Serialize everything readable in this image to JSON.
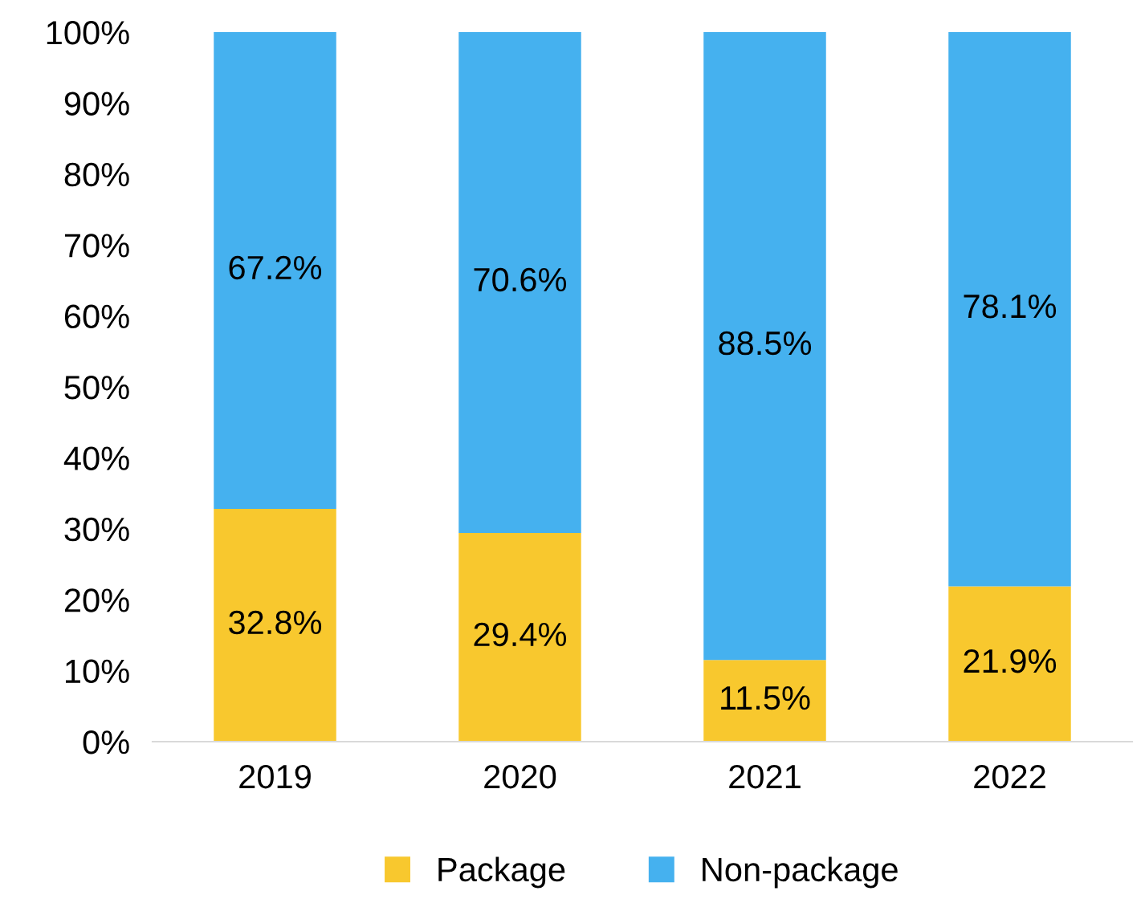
{
  "chart_data": {
    "type": "bar",
    "stacked": true,
    "categories": [
      "2019",
      "2020",
      "2021",
      "2022"
    ],
    "series": [
      {
        "name": "Package",
        "color": "#f8c82e",
        "values": [
          32.8,
          29.4,
          11.5,
          21.9
        ],
        "value_labels": [
          "32.8%",
          "29.4%",
          "11.5%",
          "21.9%"
        ]
      },
      {
        "name": "Non-package",
        "color": "#45b1ef",
        "values": [
          67.2,
          70.6,
          88.5,
          78.1
        ],
        "value_labels": [
          "67.2%",
          "70.6%",
          "88.5%",
          "78.1%"
        ]
      }
    ],
    "ylim": [
      0,
      100
    ],
    "yticks": [
      {
        "value": 0,
        "label": "0%"
      },
      {
        "value": 10,
        "label": "10%"
      },
      {
        "value": 20,
        "label": "20%"
      },
      {
        "value": 30,
        "label": "30%"
      },
      {
        "value": 40,
        "label": "40%"
      },
      {
        "value": 50,
        "label": "50%"
      },
      {
        "value": 60,
        "label": "60%"
      },
      {
        "value": 70,
        "label": "70%"
      },
      {
        "value": 80,
        "label": "80%"
      },
      {
        "value": 90,
        "label": "90%"
      },
      {
        "value": 100,
        "label": "100%"
      }
    ],
    "grid": false,
    "legend": "bottom"
  }
}
